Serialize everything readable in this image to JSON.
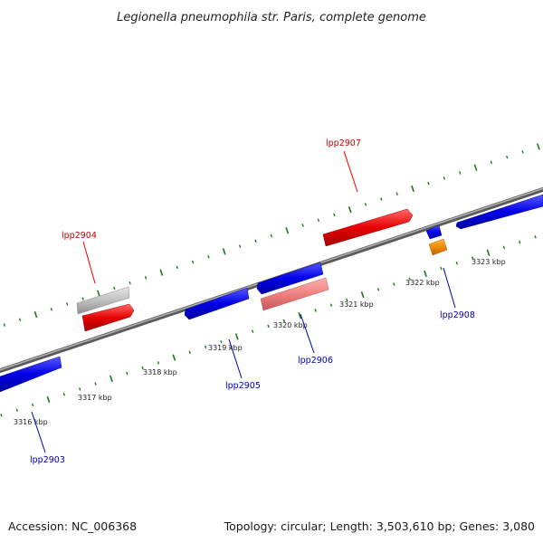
{
  "title": "Legionella pneumophila str. Paris, complete genome",
  "footer": {
    "accession": "Accession: NC_006368",
    "stats": "Topology: circular; Length: 3,503,610 bp; Genes: 3,080"
  },
  "colors": {
    "backbone": "#8a8a8a",
    "forward_gene": "#e60000",
    "forward_pseudogene": "#bfbfbf",
    "reverse_gene": "#0000e6",
    "reverse_highlight": "#f08080",
    "orange_feature": "#f08c00",
    "tick": "#1a7a1a",
    "forward_label": "#cc0000",
    "reverse_label": "#0000aa"
  },
  "chart_data": {
    "type": "linear-genome-map",
    "tick_labels": [
      "3316 kbp",
      "3317 kbp",
      "3318 kbp",
      "3319 kbp",
      "3320 kbp",
      "3321 kbp",
      "3322 kbp",
      "3323 kbp"
    ],
    "genes": [
      {
        "label": "lpp2903",
        "strand": "reverse"
      },
      {
        "label": "lpp2904",
        "strand": "forward"
      },
      {
        "label": "lpp2905",
        "strand": "reverse"
      },
      {
        "label": "lpp2906",
        "strand": "reverse"
      },
      {
        "label": "lpp2907",
        "strand": "forward"
      },
      {
        "label": "lpp2908",
        "strand": "reverse"
      }
    ]
  }
}
